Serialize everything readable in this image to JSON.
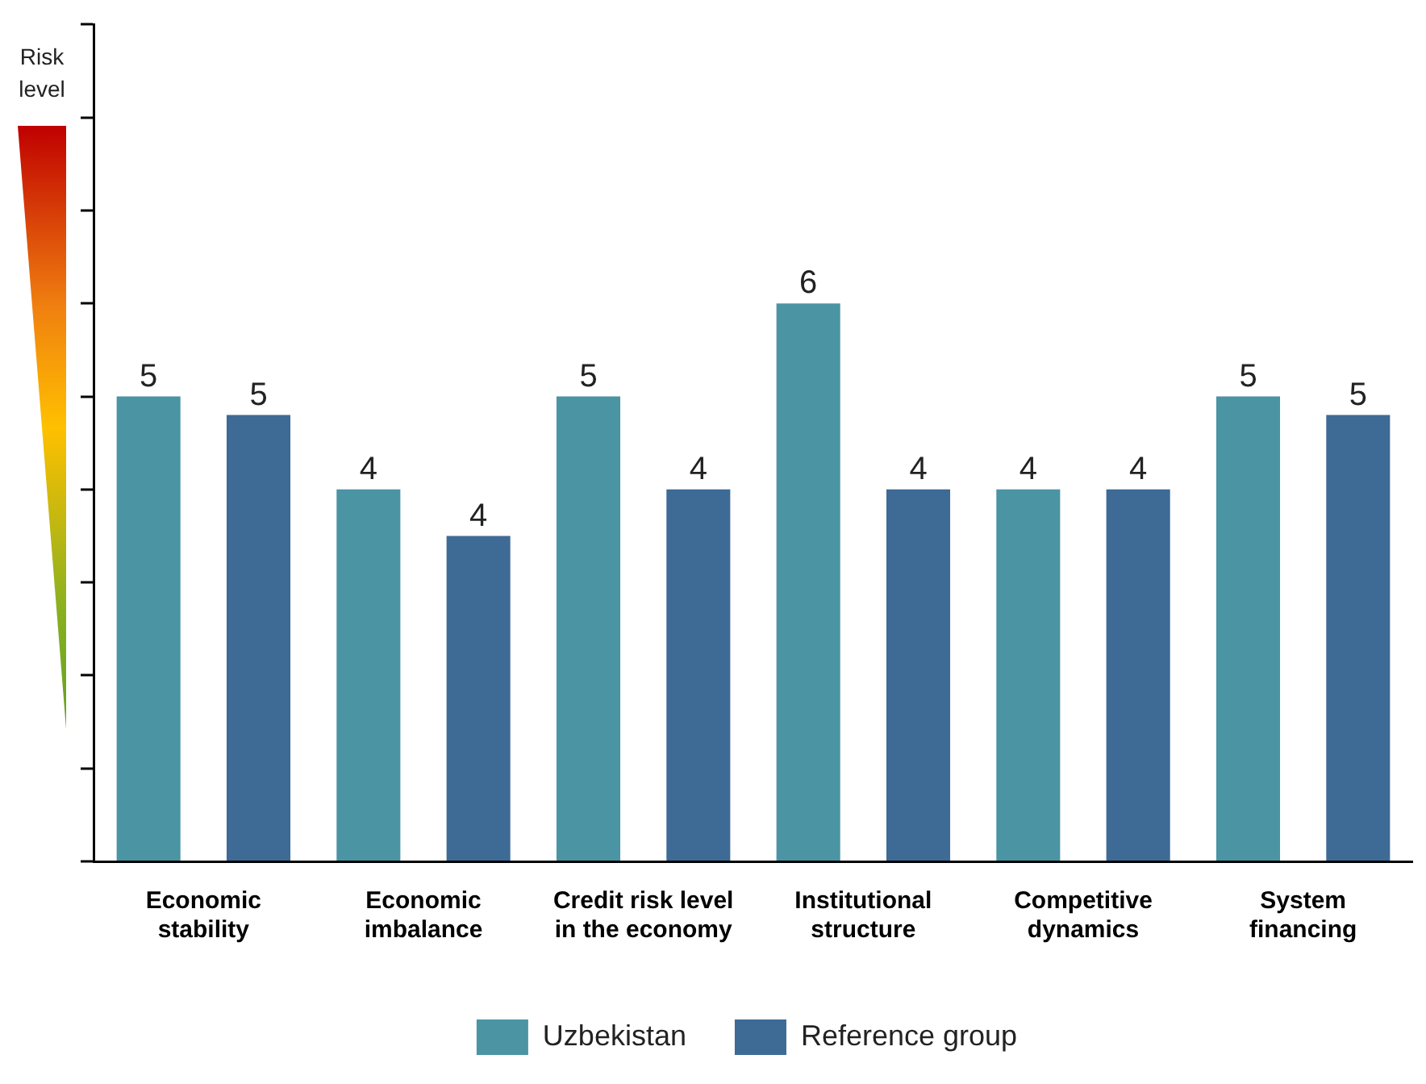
{
  "chart_data": {
    "type": "bar",
    "annotations": [
      "Risk level"
    ],
    "categories": [
      "Economic stability",
      "Economic imbalance",
      "Credit risk level in the economy",
      "Institutional structure",
      "Competitive dynamics",
      "System financing"
    ],
    "series": [
      {
        "name": "Uzbekistan",
        "color": "#4a94a4",
        "values": [
          5,
          4,
          5,
          6,
          4,
          5
        ],
        "value_labels": [
          "5",
          "4",
          "5",
          "6",
          "4",
          "5"
        ]
      },
      {
        "name": "Reference group",
        "color": "#3e6a96",
        "values": [
          4.8,
          3.5,
          4,
          4,
          4,
          4.8
        ],
        "value_labels": [
          "5",
          "4",
          "4",
          "4",
          "4",
          "5"
        ]
      }
    ],
    "ylim": [
      0,
      9
    ],
    "yticks": [
      {
        "value": 0,
        "label": null
      },
      {
        "value": 1,
        "label": null
      },
      {
        "value": 2,
        "label": null
      },
      {
        "value": 3,
        "label": null
      },
      {
        "value": 4,
        "label": null
      },
      {
        "value": 5,
        "label": null
      },
      {
        "value": 6,
        "label": null
      },
      {
        "value": 7,
        "label": null
      },
      {
        "value": 8,
        "label": null
      },
      {
        "value": 9,
        "label": null
      }
    ],
    "grid": false,
    "legend": "bottom"
  }
}
